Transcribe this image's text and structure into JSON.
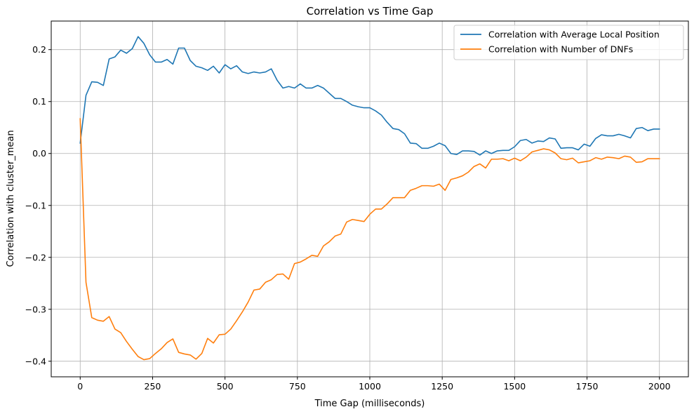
{
  "chart_data": {
    "type": "line",
    "title": "Correlation vs Time Gap",
    "xlabel": "Time Gap (milliseconds)",
    "ylabel": "Correlation with cluster_mean",
    "xlim": [
      -100,
      2100
    ],
    "ylim": [
      -0.43,
      0.255
    ],
    "xticks": [
      0,
      250,
      500,
      750,
      1000,
      1250,
      1500,
      1750,
      2000
    ],
    "xtick_labels": [
      "0",
      "250",
      "500",
      "750",
      "1000",
      "1250",
      "1500",
      "1750",
      "2000"
    ],
    "yticks": [
      -0.4,
      -0.3,
      -0.2,
      -0.1,
      0.0,
      0.1,
      0.2
    ],
    "ytick_labels": [
      "−0.4",
      "−0.3",
      "−0.2",
      "−0.1",
      "0.0",
      "0.1",
      "0.2"
    ],
    "grid": true,
    "legend_position": "top-right",
    "x": [
      0,
      20,
      40,
      60,
      80,
      100,
      120,
      140,
      160,
      180,
      200,
      220,
      240,
      260,
      280,
      300,
      320,
      340,
      360,
      380,
      400,
      420,
      440,
      460,
      480,
      500,
      520,
      540,
      560,
      580,
      600,
      620,
      640,
      660,
      680,
      700,
      720,
      740,
      760,
      780,
      800,
      820,
      840,
      860,
      880,
      900,
      920,
      940,
      960,
      980,
      1000,
      1020,
      1040,
      1060,
      1080,
      1100,
      1120,
      1140,
      1160,
      1180,
      1200,
      1220,
      1240,
      1260,
      1280,
      1300,
      1320,
      1340,
      1360,
      1380,
      1400,
      1420,
      1440,
      1460,
      1480,
      1500,
      1520,
      1540,
      1560,
      1580,
      1600,
      1620,
      1640,
      1660,
      1680,
      1700,
      1720,
      1740,
      1760,
      1780,
      1800,
      1820,
      1840,
      1860,
      1880,
      1900,
      1920,
      1940,
      1960,
      1980,
      2000
    ],
    "series": [
      {
        "name": "Correlation with Average Local Position",
        "color": "#1f77b4",
        "values": [
          0.02,
          0.112,
          0.138,
          0.137,
          0.131,
          0.182,
          0.186,
          0.199,
          0.193,
          0.202,
          0.225,
          0.212,
          0.19,
          0.176,
          0.176,
          0.181,
          0.172,
          0.203,
          0.203,
          0.179,
          0.168,
          0.165,
          0.16,
          0.168,
          0.155,
          0.171,
          0.163,
          0.169,
          0.157,
          0.154,
          0.157,
          0.155,
          0.157,
          0.163,
          0.141,
          0.126,
          0.129,
          0.126,
          0.134,
          0.126,
          0.126,
          0.131,
          0.126,
          0.116,
          0.106,
          0.106,
          0.1,
          0.093,
          0.09,
          0.088,
          0.088,
          0.082,
          0.074,
          0.06,
          0.048,
          0.046,
          0.038,
          0.02,
          0.019,
          0.01,
          0.01,
          0.014,
          0.02,
          0.015,
          0.0,
          -0.002,
          0.005,
          0.005,
          0.004,
          -0.003,
          0.005,
          0.0,
          0.005,
          0.006,
          0.006,
          0.013,
          0.025,
          0.027,
          0.02,
          0.024,
          0.023,
          0.03,
          0.028,
          0.01,
          0.011,
          0.011,
          0.007,
          0.018,
          0.014,
          0.029,
          0.036,
          0.034,
          0.034,
          0.037,
          0.034,
          0.03,
          0.048,
          0.05,
          0.044,
          0.047,
          0.047
        ]
      },
      {
        "name": "Correlation with Number of DNFs",
        "color": "#ff7f0e",
        "values": [
          0.067,
          -0.248,
          -0.316,
          -0.321,
          -0.323,
          -0.314,
          -0.338,
          -0.345,
          -0.362,
          -0.377,
          -0.391,
          -0.397,
          -0.395,
          -0.385,
          -0.376,
          -0.364,
          -0.357,
          -0.383,
          -0.386,
          -0.388,
          -0.396,
          -0.385,
          -0.356,
          -0.365,
          -0.349,
          -0.348,
          -0.338,
          -0.322,
          -0.305,
          -0.286,
          -0.263,
          -0.261,
          -0.248,
          -0.243,
          -0.233,
          -0.232,
          -0.242,
          -0.212,
          -0.209,
          -0.203,
          -0.196,
          -0.198,
          -0.178,
          -0.17,
          -0.159,
          -0.155,
          -0.132,
          -0.127,
          -0.129,
          -0.131,
          -0.117,
          -0.107,
          -0.107,
          -0.097,
          -0.085,
          -0.085,
          -0.085,
          -0.071,
          -0.067,
          -0.062,
          -0.062,
          -0.063,
          -0.059,
          -0.071,
          -0.05,
          -0.047,
          -0.043,
          -0.036,
          -0.025,
          -0.02,
          -0.028,
          -0.011,
          -0.011,
          -0.01,
          -0.014,
          -0.009,
          -0.014,
          -0.007,
          0.003,
          0.006,
          0.009,
          0.007,
          0.001,
          -0.01,
          -0.012,
          -0.009,
          -0.018,
          -0.016,
          -0.014,
          -0.008,
          -0.011,
          -0.007,
          -0.008,
          -0.01,
          -0.005,
          -0.007,
          -0.017,
          -0.016,
          -0.01,
          -0.01,
          -0.01
        ]
      }
    ]
  }
}
